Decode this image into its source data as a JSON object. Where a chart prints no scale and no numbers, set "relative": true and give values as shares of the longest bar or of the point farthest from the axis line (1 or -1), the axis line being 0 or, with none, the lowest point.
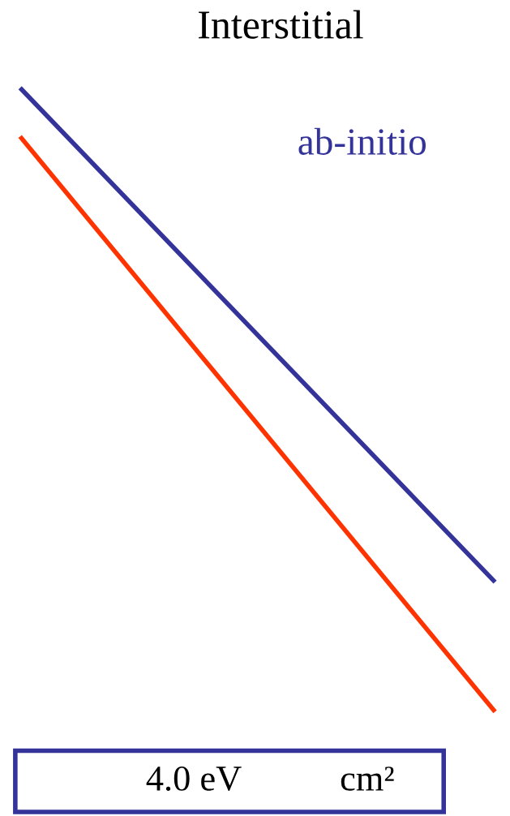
{
  "chart_data": {
    "type": "line",
    "title": "Interstitial",
    "relative": true,
    "categories": [
      null,
      null
    ],
    "series": [
      {
        "name": "ab-initio",
        "color": "#333399",
        "values": [
          1.0,
          0.208
        ]
      },
      {
        "color": "#ff3300",
        "values": [
          0.922,
          0
        ]
      }
    ],
    "annotations": [
      "4.0 eV",
      "cm²"
    ],
    "legend": false,
    "grid": false
  }
}
